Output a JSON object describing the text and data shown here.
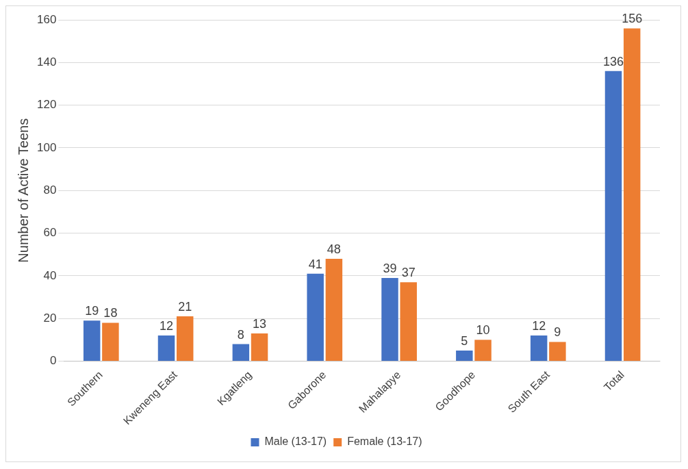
{
  "chart_data": {
    "type": "bar",
    "ylabel": "Number of Active Teens",
    "categories": [
      "Southern",
      "Kweneng East",
      "Kgatleng",
      "Gaborone",
      "Mahalapye",
      "Goodhope",
      "South East",
      "Total"
    ],
    "series": [
      {
        "name": "Male (13-17)",
        "color": "#4472c4",
        "values": [
          19,
          12,
          8,
          41,
          39,
          5,
          12,
          136
        ]
      },
      {
        "name": "Female (13-17)",
        "color": "#ed7d31",
        "values": [
          18,
          21,
          13,
          48,
          37,
          10,
          9,
          156
        ]
      }
    ],
    "ylim": [
      0,
      160
    ],
    "yticks": [
      0,
      20,
      40,
      60,
      80,
      100,
      120,
      140,
      160
    ],
    "grid": "y",
    "legend": "bottom",
    "data_labels": true
  }
}
